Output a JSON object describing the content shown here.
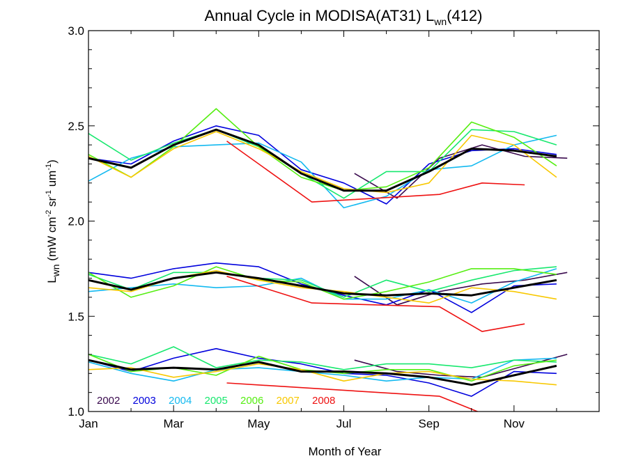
{
  "chart_data": {
    "type": "line",
    "title": {
      "main": "Annual Cycle in MODISA(AT31) L",
      "sub": "wn",
      "tail": "(412)"
    },
    "xlabel": "Month of Year",
    "ylabel": {
      "pre": "L",
      "sub": "wn",
      "mid1": " (mW cm",
      "sup1": "-2",
      "mid2": " sr",
      "sup2": "-1",
      "mid3": " um",
      "sup3": "-1",
      "end": ")"
    },
    "xlim": [
      1,
      13
    ],
    "ylim": [
      1.0,
      3.0
    ],
    "x_ticks": [
      {
        "value": 1,
        "label": "Jan"
      },
      {
        "value": 3,
        "label": "Mar"
      },
      {
        "value": 5,
        "label": "May"
      },
      {
        "value": 7,
        "label": "Jul"
      },
      {
        "value": 9,
        "label": "Sep"
      },
      {
        "value": 11,
        "label": "Nov"
      }
    ],
    "y_ticks": [
      {
        "value": 1.0,
        "label": "1.0"
      },
      {
        "value": 1.5,
        "label": "1.5"
      },
      {
        "value": 2.0,
        "label": "2.0"
      },
      {
        "value": 2.5,
        "label": "2.5"
      },
      {
        "value": 3.0,
        "label": "3.0"
      }
    ],
    "grid": false,
    "legend_position": "bottom-left",
    "series": [
      {
        "name": "2002",
        "color": "#3a0a4e",
        "bands": [
          {
            "x": [
              7.25,
              8.25,
              9.25,
              10.25,
              11.25,
              12.25
            ],
            "y": [
              2.25,
              2.12,
              2.33,
              2.4,
              2.34,
              2.33
            ]
          },
          {
            "x": [
              7.25,
              8.25,
              9.25,
              10.25,
              11.25,
              12.25
            ],
            "y": [
              1.71,
              1.56,
              1.63,
              1.67,
              1.69,
              1.73
            ]
          },
          {
            "x": [
              7.25,
              8.25,
              9.25,
              10.25,
              11.25,
              12.25
            ],
            "y": [
              1.27,
              1.21,
              1.19,
              1.18,
              1.24,
              1.3
            ]
          }
        ]
      },
      {
        "name": "2003",
        "color": "#0000dd",
        "bands": [
          {
            "x": [
              1.0,
              2.0,
              3.0,
              4.0,
              5.0,
              6.0,
              7.0,
              8.0,
              9.0,
              10.0,
              11.0,
              12.0
            ],
            "y": [
              2.33,
              2.3,
              2.42,
              2.5,
              2.45,
              2.27,
              2.2,
              2.09,
              2.3,
              2.37,
              2.38,
              2.35
            ]
          },
          {
            "x": [
              1.0,
              2.0,
              3.0,
              4.0,
              5.0,
              6.0,
              7.0,
              8.0,
              9.0,
              10.0,
              11.0,
              12.0
            ],
            "y": [
              1.73,
              1.7,
              1.75,
              1.78,
              1.76,
              1.67,
              1.61,
              1.56,
              1.64,
              1.52,
              1.66,
              1.67
            ]
          },
          {
            "x": [
              1.0,
              2.0,
              3.0,
              4.0,
              5.0,
              6.0,
              7.0,
              8.0,
              9.0,
              10.0,
              11.0,
              12.0
            ],
            "y": [
              1.27,
              1.21,
              1.28,
              1.33,
              1.28,
              1.25,
              1.2,
              1.19,
              1.15,
              1.08,
              1.21,
              1.2
            ]
          }
        ]
      },
      {
        "name": "2004",
        "color": "#13b9f0",
        "bands": [
          {
            "x": [
              1.0,
              2.0,
              3.0,
              4.0,
              5.0,
              6.0,
              7.0,
              8.0,
              9.0,
              10.0,
              11.0,
              12.0
            ],
            "y": [
              2.21,
              2.33,
              2.39,
              2.4,
              2.41,
              2.31,
              2.07,
              2.13,
              2.27,
              2.29,
              2.4,
              2.45
            ]
          },
          {
            "x": [
              1.0,
              2.0,
              3.0,
              4.0,
              5.0,
              6.0,
              7.0,
              8.0,
              9.0,
              10.0,
              11.0,
              12.0
            ],
            "y": [
              1.63,
              1.65,
              1.67,
              1.65,
              1.66,
              1.7,
              1.59,
              1.59,
              1.64,
              1.57,
              1.68,
              1.75
            ]
          },
          {
            "x": [
              1.0,
              2.0,
              3.0,
              4.0,
              5.0,
              6.0,
              7.0,
              8.0,
              9.0,
              10.0,
              11.0,
              12.0
            ],
            "y": [
              1.26,
              1.2,
              1.16,
              1.22,
              1.23,
              1.21,
              1.19,
              1.16,
              1.18,
              1.17,
              1.27,
              1.28
            ]
          }
        ]
      },
      {
        "name": "2005",
        "color": "#17e86e",
        "bands": [
          {
            "x": [
              1.0,
              2.0,
              3.0,
              4.0,
              5.0,
              6.0,
              7.0,
              8.0,
              9.0,
              10.0,
              11.0,
              12.0
            ],
            "y": [
              2.46,
              2.32,
              2.41,
              2.48,
              2.39,
              2.25,
              2.12,
              2.26,
              2.26,
              2.48,
              2.47,
              2.4
            ]
          },
          {
            "x": [
              1.0,
              2.0,
              3.0,
              4.0,
              5.0,
              6.0,
              7.0,
              8.0,
              9.0,
              10.0,
              11.0,
              12.0
            ],
            "y": [
              1.72,
              1.64,
              1.73,
              1.73,
              1.7,
              1.69,
              1.6,
              1.69,
              1.63,
              1.69,
              1.74,
              1.76
            ]
          },
          {
            "x": [
              1.0,
              2.0,
              3.0,
              4.0,
              5.0,
              6.0,
              7.0,
              8.0,
              9.0,
              10.0,
              11.0,
              12.0
            ],
            "y": [
              1.3,
              1.25,
              1.34,
              1.23,
              1.27,
              1.26,
              1.22,
              1.25,
              1.25,
              1.23,
              1.27,
              1.26
            ]
          }
        ]
      },
      {
        "name": "2006",
        "color": "#55ee11",
        "bands": [
          {
            "x": [
              1.0,
              2.0,
              3.0,
              4.0,
              5.0,
              6.0,
              7.0,
              8.0,
              9.0,
              10.0,
              11.0,
              12.0
            ],
            "y": [
              2.35,
              2.23,
              2.39,
              2.59,
              2.39,
              2.23,
              2.16,
              2.18,
              2.28,
              2.52,
              2.44,
              2.29
            ]
          },
          {
            "x": [
              1.0,
              2.0,
              3.0,
              4.0,
              5.0,
              6.0,
              7.0,
              8.0,
              9.0,
              10.0,
              11.0,
              12.0
            ],
            "y": [
              1.73,
              1.6,
              1.66,
              1.76,
              1.69,
              1.68,
              1.59,
              1.63,
              1.68,
              1.75,
              1.75,
              1.72
            ]
          },
          {
            "x": [
              1.0,
              2.0,
              3.0,
              4.0,
              5.0,
              6.0,
              7.0,
              8.0,
              9.0,
              10.0,
              11.0,
              12.0
            ],
            "y": [
              1.3,
              1.21,
              1.23,
              1.19,
              1.29,
              1.22,
              1.2,
              1.22,
              1.22,
              1.16,
              1.24,
              1.27
            ]
          }
        ]
      },
      {
        "name": "2007",
        "color": "#f8c800",
        "bands": [
          {
            "x": [
              1.0,
              2.0,
              3.0,
              4.0,
              5.0,
              6.0,
              7.0,
              8.0,
              9.0,
              10.0,
              11.0,
              12.0
            ],
            "y": [
              2.34,
              2.23,
              2.38,
              2.47,
              2.38,
              2.26,
              2.17,
              2.15,
              2.2,
              2.45,
              2.4,
              2.23
            ]
          },
          {
            "x": [
              1.0,
              2.0,
              3.0,
              4.0,
              5.0,
              6.0,
              7.0,
              8.0,
              9.0,
              10.0,
              11.0,
              12.0
            ],
            "y": [
              1.65,
              1.63,
              1.7,
              1.74,
              1.69,
              1.65,
              1.63,
              1.6,
              1.57,
              1.65,
              1.63,
              1.59
            ]
          },
          {
            "x": [
              1.0,
              2.0,
              3.0,
              4.0,
              5.0,
              6.0,
              7.0,
              8.0,
              9.0,
              10.0,
              11.0,
              12.0
            ],
            "y": [
              1.22,
              1.23,
              1.18,
              1.21,
              1.25,
              1.22,
              1.16,
              1.2,
              1.21,
              1.17,
              1.16,
              1.14
            ]
          }
        ]
      },
      {
        "name": "2008",
        "color": "#ee1111",
        "bands": [
          {
            "x": [
              4.25,
              6.25,
              9.25,
              10.25,
              11.25
            ],
            "y": [
              2.42,
              2.1,
              2.14,
              2.2,
              2.19
            ]
          },
          {
            "x": [
              4.25,
              6.25,
              9.25,
              10.25,
              11.25
            ],
            "y": [
              1.71,
              1.57,
              1.55,
              1.42,
              1.46
            ]
          },
          {
            "x": [
              4.25,
              9.25,
              10.25
            ],
            "y": [
              1.15,
              1.08,
              0.99
            ]
          }
        ]
      },
      {
        "name": "",
        "color": "#000000",
        "thick": true,
        "bands": [
          {
            "x": [
              1.0,
              2.0,
              3.0,
              4.0,
              5.0,
              6.0,
              7.0,
              8.0,
              9.0,
              10.0,
              11.0,
              12.0
            ],
            "y": [
              2.33,
              2.28,
              2.4,
              2.48,
              2.4,
              2.25,
              2.16,
              2.16,
              2.26,
              2.38,
              2.37,
              2.34
            ]
          },
          {
            "x": [
              1.0,
              2.0,
              3.0,
              4.0,
              5.0,
              6.0,
              7.0,
              8.0,
              9.0,
              10.0,
              11.0,
              12.0
            ],
            "y": [
              1.69,
              1.64,
              1.7,
              1.73,
              1.7,
              1.66,
              1.62,
              1.61,
              1.62,
              1.61,
              1.65,
              1.69
            ]
          },
          {
            "x": [
              1.0,
              2.0,
              3.0,
              4.0,
              5.0,
              6.0,
              7.0,
              8.0,
              9.0,
              10.0,
              11.0,
              12.0
            ],
            "y": [
              1.27,
              1.22,
              1.23,
              1.22,
              1.26,
              1.21,
              1.21,
              1.2,
              1.18,
              1.14,
              1.19,
              1.24
            ]
          }
        ]
      }
    ]
  }
}
